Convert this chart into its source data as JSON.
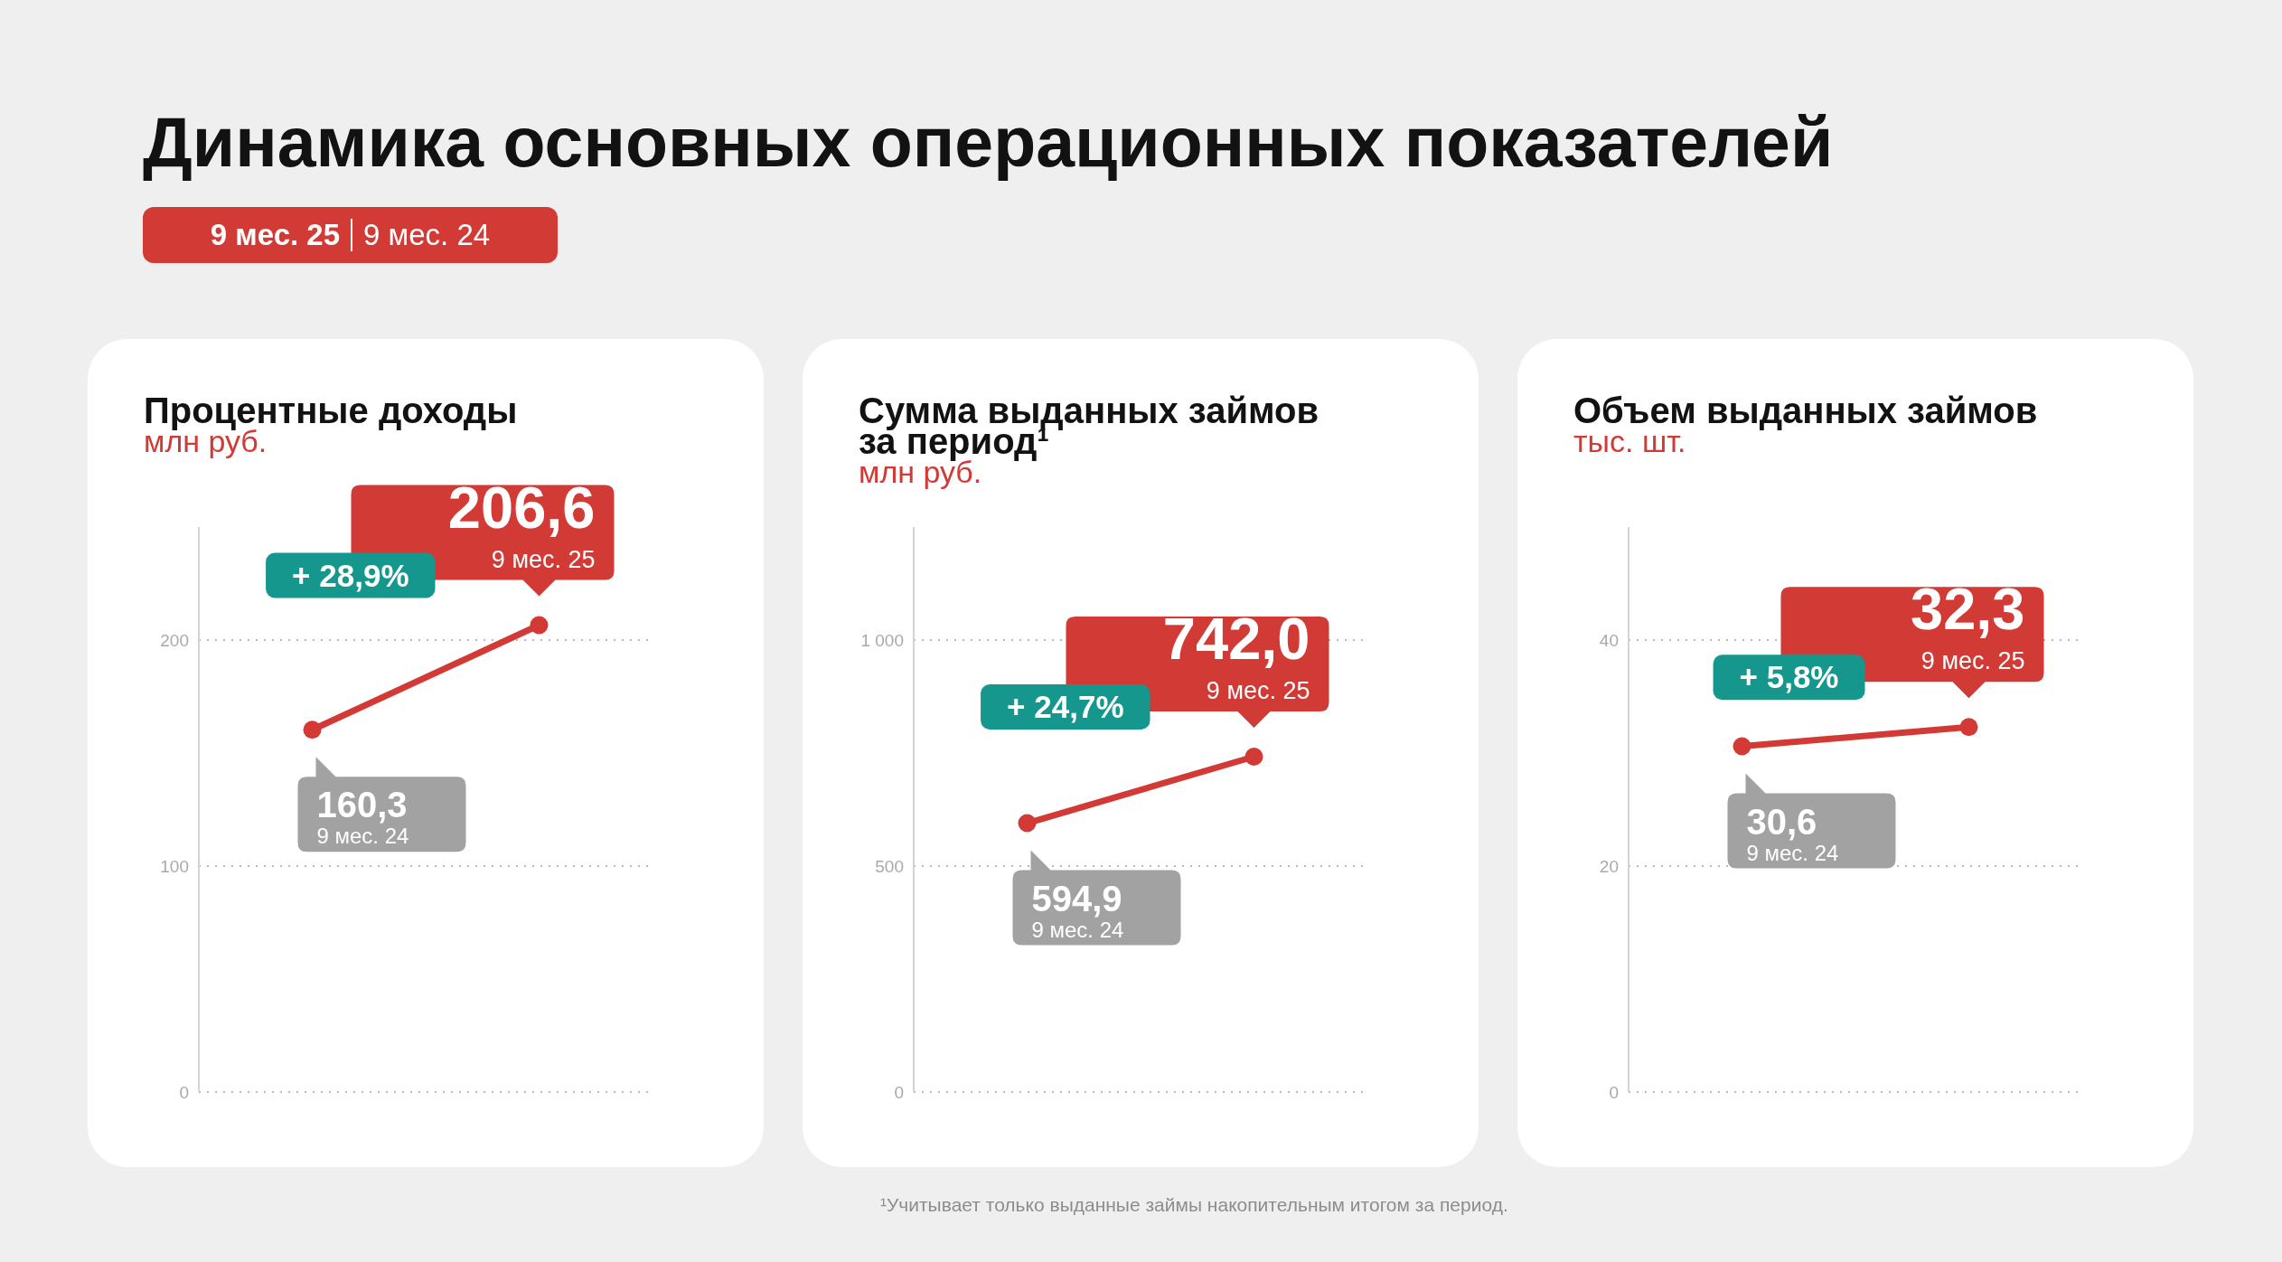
{
  "chart_data": [
    {
      "type": "other",
      "title": "Динамика основных операционных показателей",
      "annotations": [
        "9 мес. 25",
        "9 мес. 24"
      ]
    },
    {
      "type": "line",
      "title": "Процентные доходы",
      "subtitle": "млн руб.",
      "categories": [
        "9 мес. 24",
        "9 мес. 25"
      ],
      "series": [
        {
          "color": "#d33a36",
          "values": [
            160.3,
            206.6
          ],
          "value_labels": [
            "160,3",
            "206,6"
          ]
        }
      ],
      "ylim": [
        0,
        250
      ],
      "yticks": [
        0,
        100,
        200
      ],
      "grid": "y",
      "tick_labels": "y",
      "marker": "circle",
      "line_style": "solid",
      "annotations": [
        "+ 28,9%"
      ]
    },
    {
      "type": "line",
      "title": "Сумма выданных займов за период¹",
      "subtitle": "млн руб.",
      "categories": [
        "9 мес. 24",
        "9 мес. 25"
      ],
      "series": [
        {
          "color": "#d33a36",
          "values": [
            594.9,
            742.0
          ],
          "value_labels": [
            "594,9",
            "742,0"
          ]
        }
      ],
      "ylim": [
        0,
        1250
      ],
      "yticks": [
        0,
        500,
        {
          "value": 1000,
          "label": "1 000"
        }
      ],
      "grid": "y",
      "tick_labels": "y",
      "marker": "circle",
      "line_style": "solid",
      "annotations": [
        "+ 24,7%",
        "¹Учитывает только выданные займы накопительным итогом за период."
      ]
    },
    {
      "type": "line",
      "title": "Объем выданных займов",
      "subtitle": "тыс. шт.",
      "categories": [
        "9 мес. 24",
        "9 мес. 25"
      ],
      "series": [
        {
          "color": "#d33a36",
          "values": [
            30.6,
            32.3
          ],
          "value_labels": [
            "30,6",
            "32,3"
          ]
        }
      ],
      "ylim": [
        0,
        50
      ],
      "yticks": [
        0,
        20,
        40
      ],
      "grid": "y",
      "tick_labels": "y",
      "marker": "circle",
      "line_style": "solid",
      "annotations": [
        "+ 5,8%"
      ]
    }
  ]
}
